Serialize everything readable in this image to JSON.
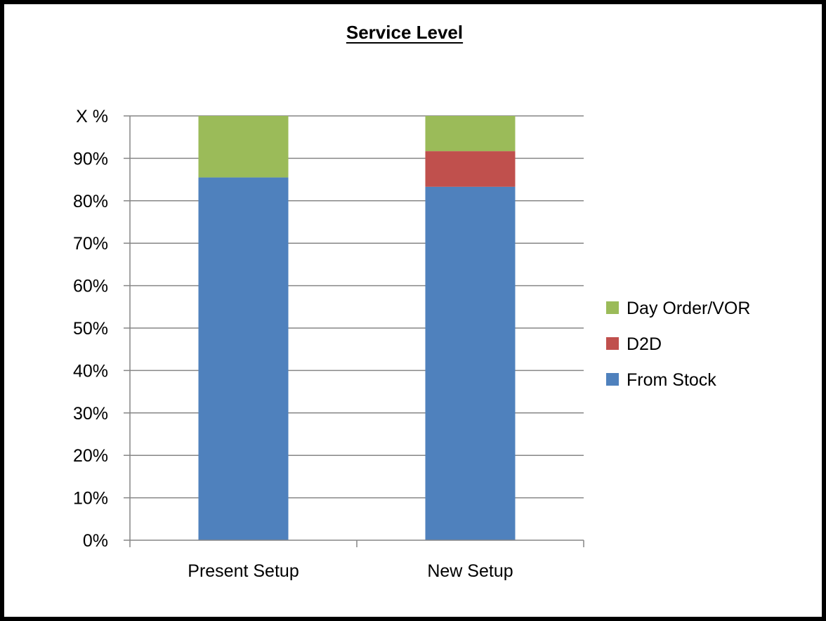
{
  "chart_data": {
    "type": "bar",
    "stacked": true,
    "title": "Service Level",
    "categories": [
      "Present Setup",
      "New Setup"
    ],
    "series": [
      {
        "name": "From Stock",
        "color": "#4f81bd",
        "values": [
          85.5,
          83.3
        ]
      },
      {
        "name": "D2D",
        "color": "#c0504d",
        "values": [
          0,
          8.4
        ]
      },
      {
        "name": "Day Order/VOR",
        "color": "#9bbb59",
        "values": [
          14.5,
          8.3
        ]
      }
    ],
    "ylim": [
      0,
      100
    ],
    "yticks": [
      {
        "value": 0,
        "label": "0%"
      },
      {
        "value": 10,
        "label": "10%"
      },
      {
        "value": 20,
        "label": "20%"
      },
      {
        "value": 30,
        "label": "30%"
      },
      {
        "value": 40,
        "label": "40%"
      },
      {
        "value": 50,
        "label": "50%"
      },
      {
        "value": 60,
        "label": "60%"
      },
      {
        "value": 70,
        "label": "70%"
      },
      {
        "value": 80,
        "label": "80%"
      },
      {
        "value": 90,
        "label": "90%"
      },
      {
        "value": 100,
        "label": "X %"
      }
    ],
    "legend_order": [
      "Day Order/VOR",
      "D2D",
      "From Stock"
    ],
    "legend_position": "right",
    "grid": true,
    "gridline_color": "#868686",
    "axis_color": "#868686",
    "text_color": "#000000"
  }
}
